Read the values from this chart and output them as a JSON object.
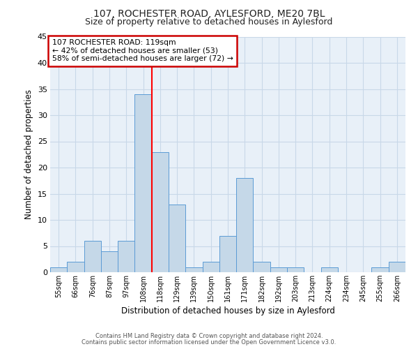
{
  "title": "107, ROCHESTER ROAD, AYLESFORD, ME20 7BL",
  "subtitle": "Size of property relative to detached houses in Aylesford",
  "xlabel": "Distribution of detached houses by size in Aylesford",
  "ylabel": "Number of detached properties",
  "bin_labels": [
    "55sqm",
    "66sqm",
    "76sqm",
    "87sqm",
    "97sqm",
    "108sqm",
    "118sqm",
    "129sqm",
    "139sqm",
    "150sqm",
    "161sqm",
    "171sqm",
    "182sqm",
    "192sqm",
    "203sqm",
    "213sqm",
    "224sqm",
    "234sqm",
    "245sqm",
    "255sqm",
    "266sqm"
  ],
  "bar_values": [
    1,
    2,
    6,
    4,
    6,
    34,
    23,
    13,
    1,
    2,
    7,
    18,
    2,
    1,
    1,
    0,
    1,
    0,
    0,
    1,
    2
  ],
  "bar_color": "#c5d8e8",
  "bar_edge_color": "#5b9bd5",
  "vline_x": 5.5,
  "ylim": [
    0,
    45
  ],
  "yticks": [
    0,
    5,
    10,
    15,
    20,
    25,
    30,
    35,
    40,
    45
  ],
  "annotation_title": "107 ROCHESTER ROAD: 119sqm",
  "annotation_line1": "← 42% of detached houses are smaller (53)",
  "annotation_line2": "58% of semi-detached houses are larger (72) →",
  "annotation_box_color": "#ffffff",
  "annotation_box_edge_color": "#cc0000",
  "footer1": "Contains HM Land Registry data © Crown copyright and database right 2024.",
  "footer2": "Contains public sector information licensed under the Open Government Licence v3.0.",
  "plot_bg_color": "#e8f0f8",
  "grid_color": "#c8d8e8",
  "title_fontsize": 10,
  "subtitle_fontsize": 9
}
